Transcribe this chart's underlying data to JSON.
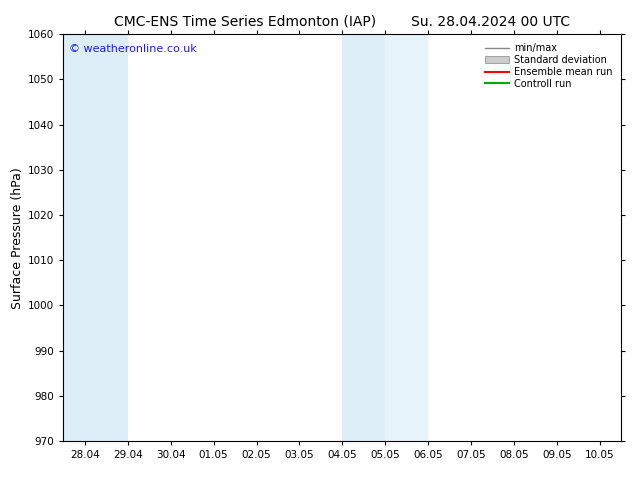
{
  "title_left": "CMC-ENS Time Series Edmonton (IAP)",
  "title_right": "Su. 28.04.2024 00 UTC",
  "ylabel": "Surface Pressure (hPa)",
  "ylim": [
    970,
    1060
  ],
  "yticks": [
    970,
    980,
    990,
    1000,
    1010,
    1020,
    1030,
    1040,
    1050,
    1060
  ],
  "xlim_start": -0.5,
  "xlim_end": 12.5,
  "xtick_labels": [
    "28.04",
    "29.04",
    "30.04",
    "01.05",
    "02.05",
    "03.05",
    "04.05",
    "05.05",
    "06.05",
    "07.05",
    "08.05",
    "09.05",
    "10.05"
  ],
  "xtick_positions": [
    0,
    1,
    2,
    3,
    4,
    5,
    6,
    7,
    8,
    9,
    10,
    11,
    12
  ],
  "shaded_regions": [
    {
      "x_start": -0.5,
      "x_end": 1.0,
      "color": "#ddeef8"
    },
    {
      "x_start": 6.0,
      "x_end": 7.0,
      "color": "#ddeef8"
    },
    {
      "x_start": 7.0,
      "x_end": 8.0,
      "color": "#e8f4fb"
    }
  ],
  "watermark_text": "© weatheronline.co.uk",
  "watermark_color": "#1a1aff",
  "legend_labels": [
    "min/max",
    "Standard deviation",
    "Ensemble mean run",
    "Controll run"
  ],
  "legend_colors": [
    "#888888",
    "#cccccc",
    "#ff0000",
    "#00aa00"
  ],
  "background_color": "#ffffff",
  "plot_bg_color": "#ffffff",
  "title_fontsize": 10,
  "tick_fontsize": 7.5,
  "ylabel_fontsize": 9
}
